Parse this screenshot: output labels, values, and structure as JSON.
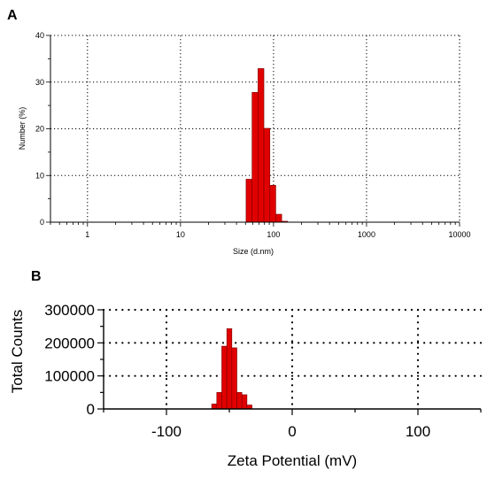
{
  "chart_data": [
    {
      "panel": "A",
      "type": "bar",
      "xlabel": "Size (d.nm)",
      "ylabel": "Number (%)",
      "xscale": "log",
      "xlim": [
        0.4,
        10000
      ],
      "ylim": [
        0,
        40
      ],
      "xticks": [
        "1",
        "10",
        "100",
        "1000",
        "10000"
      ],
      "yticks": [
        "0",
        "10",
        "20",
        "30",
        "40"
      ],
      "grid": "dotted",
      "bar_color": "#e00000",
      "bins": [
        {
          "x0": 50.7,
          "x1": 58.8,
          "value": 9.2
        },
        {
          "x0": 58.8,
          "x1": 68.1,
          "value": 27.8
        },
        {
          "x0": 68.1,
          "x1": 78.8,
          "value": 32.9
        },
        {
          "x0": 78.8,
          "x1": 91.3,
          "value": 20.1
        },
        {
          "x0": 91.3,
          "x1": 105.7,
          "value": 7.9
        },
        {
          "x0": 105.7,
          "x1": 122.4,
          "value": 1.7
        },
        {
          "x0": 122.4,
          "x1": 141.8,
          "value": 0.2
        }
      ]
    },
    {
      "panel": "B",
      "type": "bar",
      "xlabel": "Zeta Potential (mV)",
      "ylabel": "Total Counts",
      "xlim": [
        -150,
        150
      ],
      "ylim": [
        0,
        300000
      ],
      "xticks": [
        "-100",
        "0",
        "100"
      ],
      "yticks": [
        "0",
        "100000",
        "200000",
        "300000"
      ],
      "grid": "dotted",
      "bar_color": "#e00000",
      "bins": [
        {
          "x0": -64,
          "x1": -60,
          "value": 15000
        },
        {
          "x0": -60,
          "x1": -56,
          "value": 50000
        },
        {
          "x0": -56,
          "x1": -52,
          "value": 190000
        },
        {
          "x0": -52,
          "x1": -48,
          "value": 243000
        },
        {
          "x0": -48,
          "x1": -44,
          "value": 185000
        },
        {
          "x0": -44,
          "x1": -40,
          "value": 50000
        },
        {
          "x0": -40,
          "x1": -36,
          "value": 43000
        },
        {
          "x0": -36,
          "x1": -32,
          "value": 12000
        }
      ]
    }
  ]
}
